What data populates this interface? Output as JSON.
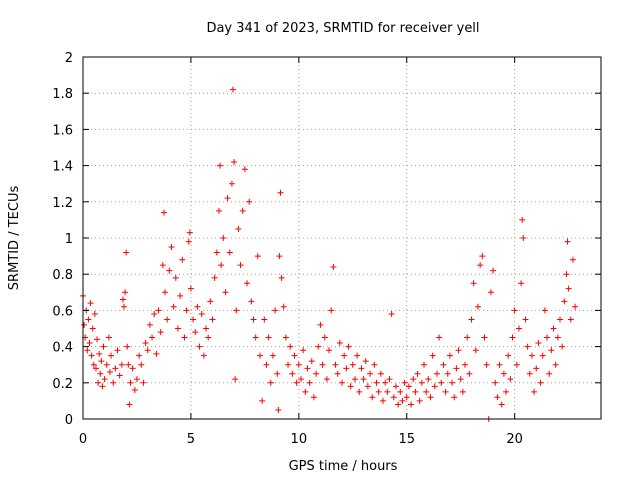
{
  "chart_data": {
    "type": "scatter",
    "title": "Day 341 of 2023, SRMTID for receiver yell",
    "xlabel": "GPS time / hours",
    "ylabel": "SRMTID / TECUs",
    "xlim": [
      0,
      24
    ],
    "ylim": [
      0,
      2
    ],
    "xticks": [
      0,
      5,
      10,
      15,
      20
    ],
    "yticks": [
      0,
      0.2,
      0.4,
      0.6,
      0.8,
      1,
      1.2,
      1.4,
      1.6,
      1.8,
      2
    ],
    "xtick_labels": [
      "0",
      "5",
      "10",
      "15",
      "20"
    ],
    "ytick_labels": [
      "0",
      "0.2",
      "0.4",
      "0.6",
      "0.8",
      "1",
      "1.2",
      "1.4",
      "1.6",
      "1.8",
      "2"
    ],
    "grid": true,
    "marker": "+",
    "color": "#ff0000",
    "series": [
      {
        "name": "SRMTID",
        "points": [
          [
            0.0,
            0.68
          ],
          [
            0.05,
            0.52
          ],
          [
            0.1,
            0.45
          ],
          [
            0.15,
            0.6
          ],
          [
            0.2,
            0.38
          ],
          [
            0.25,
            0.55
          ],
          [
            0.3,
            0.42
          ],
          [
            0.35,
            0.64
          ],
          [
            0.4,
            0.35
          ],
          [
            0.45,
            0.5
          ],
          [
            0.5,
            0.3
          ],
          [
            0.55,
            0.58
          ],
          [
            0.6,
            0.28
          ],
          [
            0.65,
            0.44
          ],
          [
            0.7,
            0.2
          ],
          [
            0.75,
            0.36
          ],
          [
            0.8,
            0.25
          ],
          [
            0.85,
            0.32
          ],
          [
            0.9,
            0.18
          ],
          [
            0.95,
            0.4
          ],
          [
            1.0,
            0.22
          ],
          [
            1.1,
            0.3
          ],
          [
            1.2,
            0.45
          ],
          [
            1.25,
            0.26
          ],
          [
            1.3,
            0.35
          ],
          [
            1.4,
            0.2
          ],
          [
            1.5,
            0.28
          ],
          [
            1.6,
            0.38
          ],
          [
            1.7,
            0.24
          ],
          [
            1.8,
            0.3
          ],
          [
            1.85,
            0.66
          ],
          [
            1.9,
            0.62
          ],
          [
            1.95,
            0.7
          ],
          [
            2.0,
            0.92
          ],
          [
            2.05,
            0.4
          ],
          [
            2.1,
            0.3
          ],
          [
            2.15,
            0.08
          ],
          [
            2.2,
            0.2
          ],
          [
            2.3,
            0.28
          ],
          [
            2.4,
            0.16
          ],
          [
            2.5,
            0.22
          ],
          [
            2.6,
            0.35
          ],
          [
            2.7,
            0.3
          ],
          [
            2.8,
            0.2
          ],
          [
            2.9,
            0.42
          ],
          [
            3.0,
            0.38
          ],
          [
            3.1,
            0.52
          ],
          [
            3.2,
            0.45
          ],
          [
            3.3,
            0.58
          ],
          [
            3.4,
            0.36
          ],
          [
            3.5,
            0.6
          ],
          [
            3.6,
            0.48
          ],
          [
            3.7,
            0.85
          ],
          [
            3.75,
            1.14
          ],
          [
            3.8,
            0.7
          ],
          [
            3.9,
            0.55
          ],
          [
            4.0,
            0.82
          ],
          [
            4.1,
            0.95
          ],
          [
            4.2,
            0.62
          ],
          [
            4.3,
            0.78
          ],
          [
            4.4,
            0.5
          ],
          [
            4.5,
            0.68
          ],
          [
            4.6,
            0.88
          ],
          [
            4.7,
            0.45
          ],
          [
            4.8,
            0.6
          ],
          [
            4.9,
            0.98
          ],
          [
            4.95,
            1.03
          ],
          [
            5.0,
            0.72
          ],
          [
            5.1,
            0.55
          ],
          [
            5.2,
            0.48
          ],
          [
            5.3,
            0.62
          ],
          [
            5.4,
            0.4
          ],
          [
            5.5,
            0.58
          ],
          [
            5.6,
            0.35
          ],
          [
            5.7,
            0.5
          ],
          [
            5.8,
            0.45
          ],
          [
            5.9,
            0.65
          ],
          [
            6.0,
            0.55
          ],
          [
            6.1,
            0.78
          ],
          [
            6.2,
            0.92
          ],
          [
            6.3,
            1.15
          ],
          [
            6.35,
            1.4
          ],
          [
            6.4,
            0.85
          ],
          [
            6.5,
            1.0
          ],
          [
            6.6,
            0.7
          ],
          [
            6.7,
            1.22
          ],
          [
            6.8,
            0.92
          ],
          [
            6.9,
            1.3
          ],
          [
            6.95,
            1.82
          ],
          [
            7.0,
            1.42
          ],
          [
            7.05,
            0.22
          ],
          [
            7.1,
            0.6
          ],
          [
            7.2,
            1.05
          ],
          [
            7.3,
            0.85
          ],
          [
            7.4,
            1.15
          ],
          [
            7.5,
            1.38
          ],
          [
            7.6,
            0.75
          ],
          [
            7.7,
            1.2
          ],
          [
            7.8,
            0.65
          ],
          [
            7.9,
            0.55
          ],
          [
            8.0,
            0.45
          ],
          [
            8.1,
            0.9
          ],
          [
            8.2,
            0.35
          ],
          [
            8.3,
            0.1
          ],
          [
            8.4,
            0.55
          ],
          [
            8.5,
            0.3
          ],
          [
            8.6,
            0.45
          ],
          [
            8.7,
            0.2
          ],
          [
            8.8,
            0.35
          ],
          [
            8.9,
            0.6
          ],
          [
            9.0,
            0.25
          ],
          [
            9.05,
            0.05
          ],
          [
            9.1,
            0.9
          ],
          [
            9.15,
            1.25
          ],
          [
            9.2,
            0.78
          ],
          [
            9.3,
            0.62
          ],
          [
            9.4,
            0.45
          ],
          [
            9.5,
            0.3
          ],
          [
            9.6,
            0.4
          ],
          [
            9.7,
            0.25
          ],
          [
            9.8,
            0.35
          ],
          [
            9.9,
            0.2
          ],
          [
            10.0,
            0.3
          ],
          [
            10.1,
            0.22
          ],
          [
            10.2,
            0.38
          ],
          [
            10.3,
            0.15
          ],
          [
            10.4,
            0.28
          ],
          [
            10.5,
            0.2
          ],
          [
            10.6,
            0.32
          ],
          [
            10.7,
            0.12
          ],
          [
            10.8,
            0.25
          ],
          [
            10.9,
            0.4
          ],
          [
            11.0,
            0.52
          ],
          [
            11.1,
            0.3
          ],
          [
            11.2,
            0.45
          ],
          [
            11.3,
            0.22
          ],
          [
            11.4,
            0.38
          ],
          [
            11.5,
            0.6
          ],
          [
            11.6,
            0.84
          ],
          [
            11.7,
            0.3
          ],
          [
            11.8,
            0.25
          ],
          [
            11.9,
            0.42
          ],
          [
            12.0,
            0.2
          ],
          [
            12.1,
            0.35
          ],
          [
            12.2,
            0.28
          ],
          [
            12.3,
            0.4
          ],
          [
            12.4,
            0.18
          ],
          [
            12.5,
            0.3
          ],
          [
            12.6,
            0.22
          ],
          [
            12.7,
            0.35
          ],
          [
            12.8,
            0.15
          ],
          [
            12.9,
            0.28
          ],
          [
            13.0,
            0.22
          ],
          [
            13.1,
            0.32
          ],
          [
            13.2,
            0.18
          ],
          [
            13.3,
            0.25
          ],
          [
            13.4,
            0.12
          ],
          [
            13.5,
            0.3
          ],
          [
            13.6,
            0.2
          ],
          [
            13.7,
            0.15
          ],
          [
            13.8,
            0.25
          ],
          [
            13.9,
            0.1
          ],
          [
            14.0,
            0.2
          ],
          [
            14.1,
            0.15
          ],
          [
            14.2,
            0.22
          ],
          [
            14.3,
            0.58
          ],
          [
            14.4,
            0.12
          ],
          [
            14.5,
            0.18
          ],
          [
            14.6,
            0.08
          ],
          [
            14.7,
            0.15
          ],
          [
            14.8,
            0.1
          ],
          [
            14.9,
            0.2
          ],
          [
            15.0,
            0.12
          ],
          [
            15.1,
            0.18
          ],
          [
            15.2,
            0.08
          ],
          [
            15.3,
            0.22
          ],
          [
            15.4,
            0.15
          ],
          [
            15.5,
            0.25
          ],
          [
            15.6,
            0.1
          ],
          [
            15.7,
            0.2
          ],
          [
            15.8,
            0.3
          ],
          [
            15.9,
            0.15
          ],
          [
            16.0,
            0.22
          ],
          [
            16.1,
            0.12
          ],
          [
            16.2,
            0.35
          ],
          [
            16.3,
            0.18
          ],
          [
            16.4,
            0.25
          ],
          [
            16.5,
            0.45
          ],
          [
            16.6,
            0.2
          ],
          [
            16.7,
            0.3
          ],
          [
            16.8,
            0.15
          ],
          [
            16.9,
            0.25
          ],
          [
            17.0,
            0.35
          ],
          [
            17.1,
            0.2
          ],
          [
            17.2,
            0.12
          ],
          [
            17.3,
            0.28
          ],
          [
            17.4,
            0.38
          ],
          [
            17.5,
            0.22
          ],
          [
            17.6,
            0.15
          ],
          [
            17.7,
            0.3
          ],
          [
            17.8,
            0.45
          ],
          [
            17.9,
            0.25
          ],
          [
            18.0,
            0.55
          ],
          [
            18.1,
            0.75
          ],
          [
            18.2,
            0.38
          ],
          [
            18.3,
            0.62
          ],
          [
            18.4,
            0.85
          ],
          [
            18.5,
            0.9
          ],
          [
            18.6,
            0.45
          ],
          [
            18.7,
            0.3
          ],
          [
            18.8,
            0.0
          ],
          [
            18.9,
            0.7
          ],
          [
            19.0,
            0.82
          ],
          [
            19.1,
            0.2
          ],
          [
            19.2,
            0.12
          ],
          [
            19.3,
            0.3
          ],
          [
            19.4,
            0.08
          ],
          [
            19.5,
            0.25
          ],
          [
            19.6,
            0.15
          ],
          [
            19.7,
            0.35
          ],
          [
            19.8,
            0.22
          ],
          [
            19.9,
            0.45
          ],
          [
            20.0,
            0.6
          ],
          [
            20.1,
            0.3
          ],
          [
            20.2,
            0.5
          ],
          [
            20.3,
            0.75
          ],
          [
            20.35,
            1.1
          ],
          [
            20.4,
            1.0
          ],
          [
            20.5,
            0.55
          ],
          [
            20.6,
            0.4
          ],
          [
            20.7,
            0.25
          ],
          [
            20.8,
            0.35
          ],
          [
            20.9,
            0.15
          ],
          [
            21.0,
            0.28
          ],
          [
            21.1,
            0.42
          ],
          [
            21.2,
            0.2
          ],
          [
            21.3,
            0.35
          ],
          [
            21.4,
            0.6
          ],
          [
            21.5,
            0.45
          ],
          [
            21.6,
            0.25
          ],
          [
            21.7,
            0.38
          ],
          [
            21.8,
            0.5
          ],
          [
            21.9,
            0.3
          ],
          [
            22.0,
            0.45
          ],
          [
            22.1,
            0.55
          ],
          [
            22.2,
            0.4
          ],
          [
            22.3,
            0.65
          ],
          [
            22.4,
            0.8
          ],
          [
            22.45,
            0.98
          ],
          [
            22.5,
            0.72
          ],
          [
            22.6,
            0.55
          ],
          [
            22.7,
            0.88
          ],
          [
            22.8,
            0.62
          ]
        ]
      }
    ]
  }
}
